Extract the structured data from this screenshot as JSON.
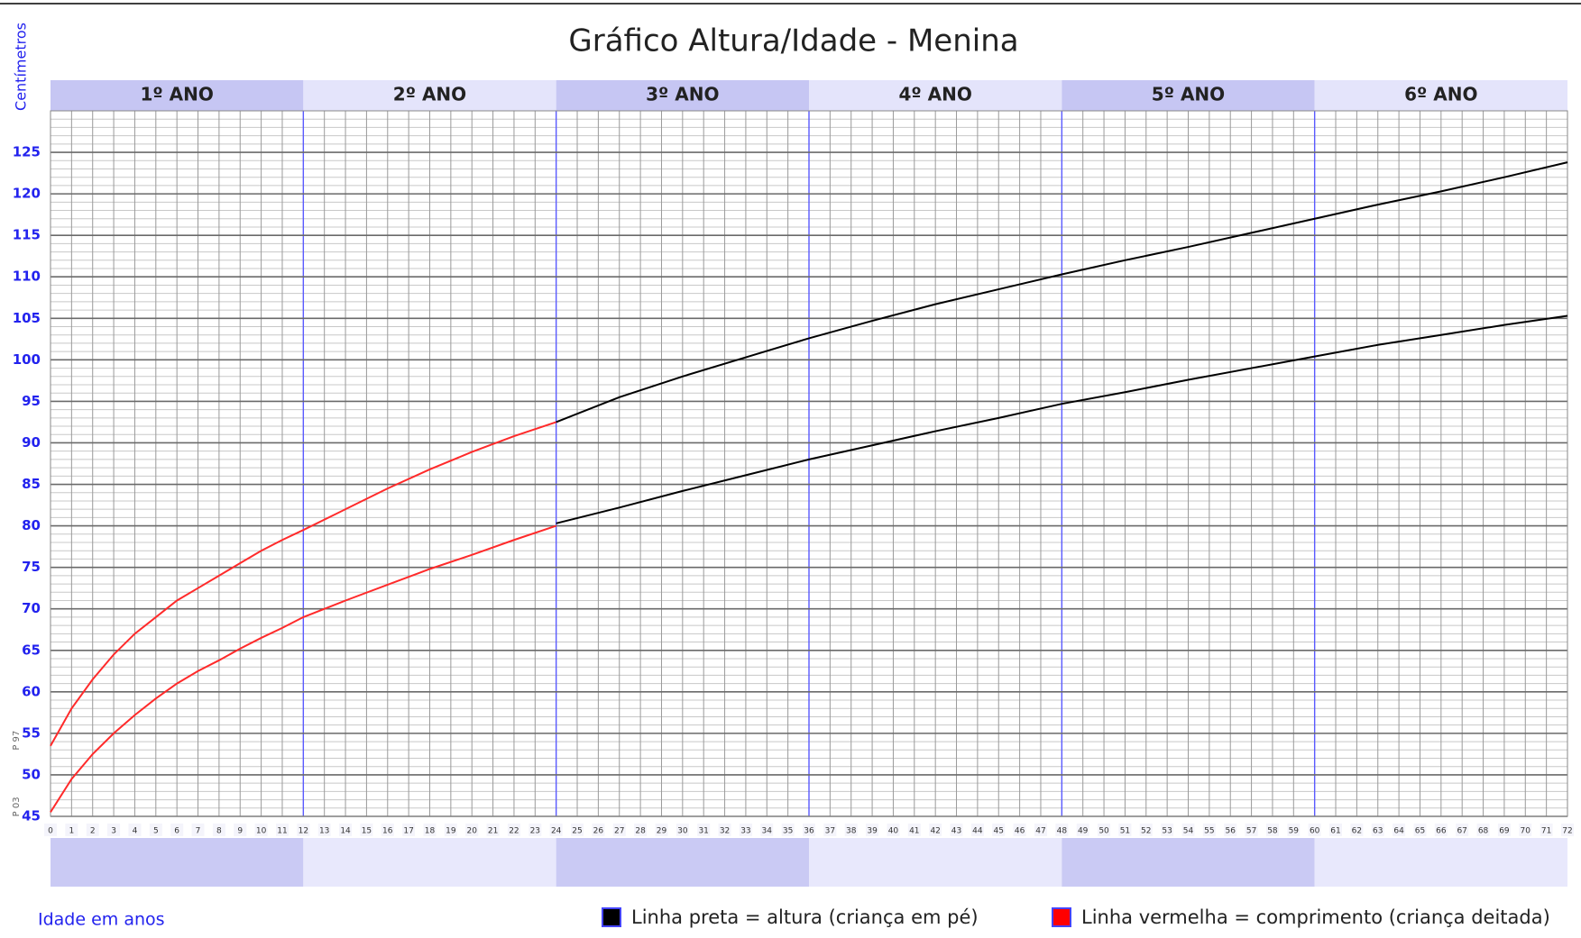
{
  "chart_data": {
    "type": "line",
    "title": "Gráfico Altura/Idade - Menina",
    "y_label": "Centímetros",
    "x_label": "Idade em anos",
    "year_labels": [
      "1º ANO",
      "2º ANO",
      "3º ANO",
      "4º ANO",
      "5º ANO",
      "6º ANO"
    ],
    "xlim": [
      0,
      72
    ],
    "xticks": [
      0,
      1,
      2,
      3,
      4,
      5,
      6,
      7,
      8,
      9,
      10,
      11,
      12,
      13,
      14,
      15,
      16,
      17,
      18,
      19,
      20,
      21,
      22,
      23,
      24,
      25,
      26,
      27,
      28,
      29,
      30,
      31,
      32,
      33,
      34,
      35,
      36,
      37,
      38,
      39,
      40,
      41,
      42,
      43,
      44,
      45,
      46,
      47,
      48,
      49,
      50,
      51,
      52,
      53,
      54,
      55,
      56,
      57,
      58,
      59,
      60,
      61,
      62,
      63,
      64,
      65,
      66,
      67,
      68,
      69,
      70,
      71,
      72
    ],
    "ylim": [
      45,
      130
    ],
    "yticks": [
      45,
      50,
      55,
      60,
      65,
      70,
      75,
      80,
      85,
      90,
      95,
      100,
      105,
      110,
      115,
      120,
      125
    ],
    "minor_grid": 1,
    "grid": true,
    "series": [
      {
        "name": "P 97",
        "segments": [
          {
            "color": "#ff2a2a",
            "x": [
              0,
              1,
              2,
              3,
              4,
              5,
              6,
              7,
              8,
              9,
              10,
              11,
              12,
              14,
              16,
              18,
              20,
              22,
              24
            ],
            "values": [
              53.5,
              58,
              61.5,
              64.5,
              67,
              69,
              71,
              72.5,
              74,
              75.5,
              77,
              78.3,
              79.5,
              82,
              84.5,
              86.8,
              88.9,
              90.8,
              92.5
            ]
          },
          {
            "color": "#000000",
            "x": [
              24,
              27,
              30,
              33,
              36,
              39,
              42,
              45,
              48,
              51,
              54,
              57,
              60,
              63,
              66,
              69,
              72
            ],
            "values": [
              92.5,
              95.5,
              98,
              100.3,
              102.6,
              104.7,
              106.7,
              108.5,
              110.3,
              112,
              113.6,
              115.3,
              117,
              118.7,
              120.3,
              122,
              123.8
            ]
          }
        ]
      },
      {
        "name": "P 03",
        "segments": [
          {
            "color": "#ff2a2a",
            "x": [
              0,
              1,
              2,
              3,
              4,
              5,
              6,
              7,
              8,
              9,
              10,
              11,
              12,
              14,
              16,
              18,
              20,
              22,
              24
            ],
            "values": [
              45.5,
              49.5,
              52.5,
              55,
              57.2,
              59.2,
              61,
              62.5,
              63.8,
              65.2,
              66.5,
              67.7,
              69,
              71,
              72.9,
              74.8,
              76.5,
              78.3,
              80
            ]
          },
          {
            "color": "#000000",
            "x": [
              24,
              27,
              30,
              33,
              36,
              39,
              42,
              45,
              48,
              51,
              54,
              57,
              60,
              63,
              66,
              69,
              72
            ],
            "values": [
              80.3,
              82.2,
              84.2,
              86.1,
              88,
              89.7,
              91.4,
              93,
              94.7,
              96.1,
              97.6,
              99,
              100.4,
              101.8,
              103,
              104.2,
              105.3
            ]
          }
        ]
      }
    ],
    "legend": [
      {
        "color": "#000000",
        "label": "Linha preta = altura (criança em pé)"
      },
      {
        "color": "#ff0000",
        "label": "Linha vermelha = comprimento (criança deitada)"
      }
    ]
  }
}
